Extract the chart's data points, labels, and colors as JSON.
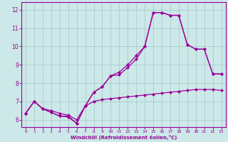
{
  "xlabel": "Windchill (Refroidissement éolien,°C)",
  "bg_color": "#cce8e8",
  "line_color": "#990099",
  "grid_color": "#aacccc",
  "xlim": [
    -0.5,
    23.5
  ],
  "ylim": [
    5.6,
    12.4
  ],
  "xticks": [
    0,
    1,
    2,
    3,
    4,
    5,
    6,
    7,
    8,
    9,
    10,
    11,
    12,
    13,
    14,
    15,
    16,
    17,
    18,
    19,
    20,
    21,
    22,
    23
  ],
  "yticks": [
    6,
    7,
    8,
    9,
    10,
    11,
    12
  ],
  "line1_x": [
    0,
    1,
    2,
    3,
    4,
    5,
    6,
    7,
    8,
    9,
    10,
    11,
    12,
    13,
    14,
    15,
    16,
    17,
    18,
    19,
    20,
    21,
    22,
    23
  ],
  "line1_y": [
    6.35,
    7.0,
    6.6,
    6.4,
    6.2,
    6.2,
    5.8,
    6.75,
    7.0,
    7.1,
    7.15,
    7.2,
    7.25,
    7.3,
    7.35,
    7.4,
    7.45,
    7.5,
    7.55,
    7.6,
    7.65,
    7.65,
    7.65,
    7.6
  ],
  "line2_x": [
    0,
    1,
    2,
    3,
    4,
    5,
    6,
    7,
    8,
    9,
    10,
    11,
    12,
    13,
    14,
    15,
    16,
    17,
    18,
    19,
    20,
    21,
    22,
    23
  ],
  "line2_y": [
    6.35,
    7.0,
    6.6,
    6.4,
    6.2,
    6.15,
    5.8,
    6.75,
    7.5,
    7.8,
    8.4,
    8.45,
    8.85,
    9.3,
    10.0,
    11.85,
    11.85,
    11.7,
    11.7,
    10.1,
    9.85,
    9.85,
    8.5,
    8.5
  ],
  "line3_x": [
    0,
    1,
    2,
    3,
    4,
    5,
    6,
    7,
    8,
    9,
    10,
    11,
    12,
    13,
    14,
    15,
    16,
    17,
    18,
    19,
    20,
    21,
    22,
    23
  ],
  "line3_y": [
    6.35,
    7.0,
    6.6,
    6.5,
    6.35,
    6.25,
    6.0,
    6.75,
    7.5,
    7.8,
    8.4,
    8.6,
    9.0,
    9.5,
    10.0,
    11.85,
    11.85,
    11.7,
    11.7,
    10.1,
    9.85,
    9.85,
    8.5,
    8.5
  ],
  "marker": "D",
  "markersize": 2.2,
  "linewidth": 0.9
}
